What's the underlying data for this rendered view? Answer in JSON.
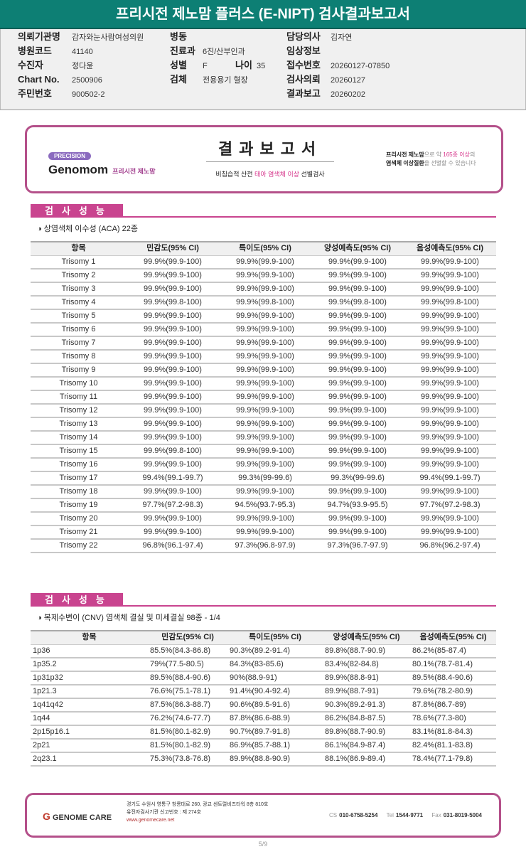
{
  "title": "프리시전 제노맘 플러스 (E-NIPT) 검사결과보고서",
  "patient": {
    "fields": [
      {
        "label": "의뢰기관명",
        "value": "감자와눈사람여성의원"
      },
      {
        "label": "병원코드",
        "value": "41140"
      },
      {
        "label": "수진자",
        "value": "정다윤"
      },
      {
        "label": "Chart No.",
        "value": "2500906"
      },
      {
        "label": "주민번호",
        "value": "900502-2"
      },
      {
        "label": "병동",
        "value": ""
      },
      {
        "label": "진료과",
        "value": "6진/산부인과"
      },
      {
        "label": "성별",
        "value": "F"
      },
      {
        "label": "나이",
        "value": "35"
      },
      {
        "label": "검체",
        "value": "전용용기 혈장"
      },
      {
        "label": "담당의사",
        "value": "김자연"
      },
      {
        "label": "임상정보",
        "value": ""
      },
      {
        "label": "접수번호",
        "value": "20260127-07850"
      },
      {
        "label": "검사의뢰",
        "value": "20260127"
      },
      {
        "label": "결과보고",
        "value": "20260202"
      }
    ]
  },
  "banner": {
    "precision": "PRECISION",
    "brand": "Genomom",
    "brand_kr": "프리시전 제노맘",
    "title": "결과보고서",
    "sub_a": "비침습적 산전 ",
    "sub_b": "태아 염색체 이상",
    "sub_c": " 선별검사",
    "right_1a": "프리시전 제노맘",
    "right_1b": "으로 약 ",
    "right_1c": "165종 이상",
    "right_1d": "의",
    "right_2a": "염색체 이상질환",
    "right_2b": "을 선별할 수 있습니다"
  },
  "section1": {
    "tab": "검사성능",
    "subtitle": "◑ 상염색체 이수성 (ACA) 22종"
  },
  "section2": {
    "tab": "검사성능",
    "subtitle": "◑ 복제수변이 (CNV) 염색체 결실 및 미세결실 98종 - 1/4"
  },
  "headers": [
    "항목",
    "민감도(95% CI)",
    "특이도(95% CI)",
    "양성예측도(95% CI)",
    "음성예측도(95% CI)"
  ],
  "aca_rows": [
    [
      "Trisomy 1",
      "99.9%(99.9-100)",
      "99.9%(99.9-100)",
      "99.9%(99.9-100)",
      "99.9%(99.9-100)"
    ],
    [
      "Trisomy 2",
      "99.9%(99.9-100)",
      "99.9%(99.9-100)",
      "99.9%(99.9-100)",
      "99.9%(99.9-100)"
    ],
    [
      "Trisomy 3",
      "99.9%(99.9-100)",
      "99.9%(99.9-100)",
      "99.9%(99.9-100)",
      "99.9%(99.9-100)"
    ],
    [
      "Trisomy 4",
      "99.9%(99.8-100)",
      "99.9%(99.8-100)",
      "99.9%(99.8-100)",
      "99.9%(99.8-100)"
    ],
    [
      "Trisomy 5",
      "99.9%(99.9-100)",
      "99.9%(99.9-100)",
      "99.9%(99.9-100)",
      "99.9%(99.9-100)"
    ],
    [
      "Trisomy 6",
      "99.9%(99.9-100)",
      "99.9%(99.9-100)",
      "99.9%(99.9-100)",
      "99.9%(99.9-100)"
    ],
    [
      "Trisomy 7",
      "99.9%(99.9-100)",
      "99.9%(99.9-100)",
      "99.9%(99.9-100)",
      "99.9%(99.9-100)"
    ],
    [
      "Trisomy 8",
      "99.9%(99.9-100)",
      "99.9%(99.9-100)",
      "99.9%(99.9-100)",
      "99.9%(99.9-100)"
    ],
    [
      "Trisomy 9",
      "99.9%(99.9-100)",
      "99.9%(99.9-100)",
      "99.9%(99.9-100)",
      "99.9%(99.9-100)"
    ],
    [
      "Trisomy 10",
      "99.9%(99.9-100)",
      "99.9%(99.9-100)",
      "99.9%(99.9-100)",
      "99.9%(99.9-100)"
    ],
    [
      "Trisomy 11",
      "99.9%(99.9-100)",
      "99.9%(99.9-100)",
      "99.9%(99.9-100)",
      "99.9%(99.9-100)"
    ],
    [
      "Trisomy 12",
      "99.9%(99.9-100)",
      "99.9%(99.9-100)",
      "99.9%(99.9-100)",
      "99.9%(99.9-100)"
    ],
    [
      "Trisomy 13",
      "99.9%(99.9-100)",
      "99.9%(99.9-100)",
      "99.9%(99.9-100)",
      "99.9%(99.9-100)"
    ],
    [
      "Trisomy 14",
      "99.9%(99.9-100)",
      "99.9%(99.9-100)",
      "99.9%(99.9-100)",
      "99.9%(99.9-100)"
    ],
    [
      "Trisomy 15",
      "99.9%(99.8-100)",
      "99.9%(99.9-100)",
      "99.9%(99.9-100)",
      "99.9%(99.9-100)"
    ],
    [
      "Trisomy 16",
      "99.9%(99.9-100)",
      "99.9%(99.9-100)",
      "99.9%(99.9-100)",
      "99.9%(99.9-100)"
    ],
    [
      "Trisomy 17",
      "99.4%(99.1-99.7)",
      "99.3%(99-99.6)",
      "99.3%(99-99.6)",
      "99.4%(99.1-99.7)"
    ],
    [
      "Trisomy 18",
      "99.9%(99.9-100)",
      "99.9%(99.9-100)",
      "99.9%(99.9-100)",
      "99.9%(99.9-100)"
    ],
    [
      "Trisomy 19",
      "97.7%(97.2-98.3)",
      "94.5%(93.7-95.3)",
      "94.7%(93.9-95.5)",
      "97.7%(97.2-98.3)"
    ],
    [
      "Trisomy 20",
      "99.9%(99.9-100)",
      "99.9%(99.9-100)",
      "99.9%(99.9-100)",
      "99.9%(99.9-100)"
    ],
    [
      "Trisomy 21",
      "99.9%(99.9-100)",
      "99.9%(99.9-100)",
      "99.9%(99.9-100)",
      "99.9%(99.9-100)"
    ],
    [
      "Trisomy 22",
      "96.8%(96.1-97.4)",
      "97.3%(96.8-97.9)",
      "97.3%(96.7-97.9)",
      "96.8%(96.2-97.4)"
    ]
  ],
  "cnv_rows": [
    [
      "1p36",
      "85.5%(84.3-86.8)",
      "90.3%(89.2-91.4)",
      "89.8%(88.7-90.9)",
      "86.2%(85-87.4)"
    ],
    [
      "1p35.2",
      "79%(77.5-80.5)",
      "84.3%(83-85.6)",
      "83.4%(82-84.8)",
      "80.1%(78.7-81.4)"
    ],
    [
      "1p31p32",
      "89.5%(88.4-90.6)",
      "90%(88.9-91)",
      "89.9%(88.8-91)",
      "89.5%(88.4-90.6)"
    ],
    [
      "1p21.3",
      "76.6%(75.1-78.1)",
      "91.4%(90.4-92.4)",
      "89.9%(88.7-91)",
      "79.6%(78.2-80.9)"
    ],
    [
      "1q41q42",
      "87.5%(86.3-88.7)",
      "90.6%(89.5-91.6)",
      "90.3%(89.2-91.3)",
      "87.8%(86.7-89)"
    ],
    [
      "1q44",
      "76.2%(74.6-77.7)",
      "87.8%(86.6-88.9)",
      "86.2%(84.8-87.5)",
      "78.6%(77.3-80)"
    ],
    [
      "2p15p16.1",
      "81.5%(80.1-82.9)",
      "90.7%(89.7-91.8)",
      "89.8%(88.7-90.9)",
      "83.1%(81.8-84.3)"
    ],
    [
      "2p21",
      "81.5%(80.1-82.9)",
      "86.9%(85.7-88.1)",
      "86.1%(84.9-87.4)",
      "82.4%(81.1-83.8)"
    ],
    [
      "2q23.1",
      "75.3%(73.8-76.8)",
      "89.9%(88.8-90.9)",
      "88.1%(86.9-89.4)",
      "78.4%(77.1-79.8)"
    ]
  ],
  "footer": {
    "company": "GENOME CARE",
    "address": "경기도 수원시 영통구 창룡대로 260, 광교 센트럴비즈타워 8층 810호",
    "license": "유전자검사기관 신고번호 : 제 274호",
    "url": "www.genomecare.net",
    "cs_label": "CS",
    "cs": "010-6758-5254",
    "tel_label": "Tel",
    "tel": "1544-9771",
    "fax_label": "Fax",
    "fax": "031-8019-5004"
  },
  "page": "5/9",
  "colors": {
    "title_bar": "#0d7f74",
    "accent": "#c9448f",
    "border": "#b4508a"
  }
}
